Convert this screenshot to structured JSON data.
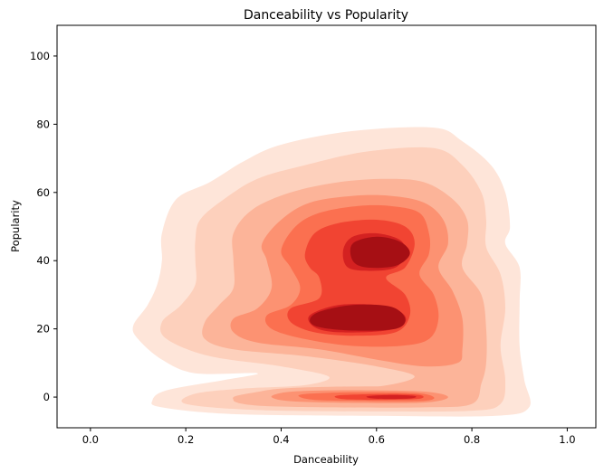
{
  "chart_data": {
    "type": "density_contour",
    "title": "Danceability vs Popularity",
    "xlabel": "Danceability",
    "ylabel": "Popularity",
    "xlim": [
      -0.07,
      1.06
    ],
    "ylim": [
      -9,
      109
    ],
    "xticks": [
      0.0,
      0.2,
      0.4,
      0.6,
      0.8,
      1.0
    ],
    "xtick_labels": [
      "0.0",
      "0.2",
      "0.4",
      "0.6",
      "0.8",
      "1.0"
    ],
    "yticks": [
      0,
      20,
      40,
      60,
      80,
      100
    ],
    "ytick_labels": [
      "0",
      "20",
      "40",
      "60",
      "80",
      "100"
    ],
    "grid": false,
    "colormap": "Reds",
    "level_colors": [
      "#fee5d9",
      "#fdd0bc",
      "#fcb499",
      "#fc9272",
      "#fb7050",
      "#f14432",
      "#d42121",
      "#a60f14"
    ],
    "peaks": [
      {
        "x": 0.61,
        "y": 41
      },
      {
        "x": 0.55,
        "y": 22
      },
      {
        "x": 0.62,
        "y": 0
      }
    ],
    "levels": [
      {
        "points": [
          [
            0.18,
            58
          ],
          [
            0.25,
            63
          ],
          [
            0.32,
            69
          ],
          [
            0.4,
            74
          ],
          [
            0.55,
            78
          ],
          [
            0.72,
            79
          ],
          [
            0.78,
            75
          ],
          [
            0.84,
            68
          ],
          [
            0.87,
            60
          ],
          [
            0.88,
            50
          ],
          [
            0.87,
            45
          ],
          [
            0.9,
            38
          ],
          [
            0.9,
            28
          ],
          [
            0.9,
            15
          ],
          [
            0.91,
            5
          ],
          [
            0.92,
            -3
          ],
          [
            0.85,
            -5.5
          ],
          [
            0.6,
            -5.5
          ],
          [
            0.3,
            -5
          ],
          [
            0.15,
            -3
          ],
          [
            0.13,
            -1
          ],
          [
            0.16,
            2
          ],
          [
            0.28,
            5
          ],
          [
            0.35,
            7
          ],
          [
            0.22,
            7
          ],
          [
            0.15,
            11
          ],
          [
            0.1,
            17
          ],
          [
            0.09,
            21
          ],
          [
            0.12,
            27
          ],
          [
            0.14,
            33
          ],
          [
            0.15,
            40
          ],
          [
            0.15,
            48
          ]
        ]
      },
      {
        "points": [
          [
            0.23,
            52
          ],
          [
            0.28,
            58
          ],
          [
            0.35,
            64
          ],
          [
            0.45,
            68
          ],
          [
            0.58,
            72
          ],
          [
            0.72,
            73
          ],
          [
            0.78,
            68
          ],
          [
            0.82,
            60
          ],
          [
            0.83,
            52
          ],
          [
            0.83,
            44
          ],
          [
            0.86,
            36
          ],
          [
            0.87,
            26
          ],
          [
            0.86,
            15
          ],
          [
            0.87,
            5
          ],
          [
            0.86,
            -2
          ],
          [
            0.8,
            -4
          ],
          [
            0.6,
            -4.2
          ],
          [
            0.35,
            -3.8
          ],
          [
            0.2,
            -2
          ],
          [
            0.22,
            1
          ],
          [
            0.32,
            2.5
          ],
          [
            0.45,
            3.5
          ],
          [
            0.5,
            6
          ],
          [
            0.4,
            9
          ],
          [
            0.25,
            12
          ],
          [
            0.16,
            17
          ],
          [
            0.15,
            22
          ],
          [
            0.19,
            27
          ],
          [
            0.22,
            33
          ],
          [
            0.22,
            40
          ],
          [
            0.22,
            46
          ]
        ]
      },
      {
        "points": [
          [
            0.3,
            48
          ],
          [
            0.34,
            55
          ],
          [
            0.42,
            60
          ],
          [
            0.52,
            63
          ],
          [
            0.62,
            64
          ],
          [
            0.7,
            63
          ],
          [
            0.76,
            58
          ],
          [
            0.79,
            52
          ],
          [
            0.79,
            45
          ],
          [
            0.78,
            38
          ],
          [
            0.82,
            30
          ],
          [
            0.83,
            20
          ],
          [
            0.83,
            10
          ],
          [
            0.82,
            4
          ],
          [
            0.8,
            -2
          ],
          [
            0.7,
            -3
          ],
          [
            0.5,
            -3
          ],
          [
            0.35,
            -2.5
          ],
          [
            0.3,
            -1
          ],
          [
            0.34,
            1
          ],
          [
            0.45,
            2
          ],
          [
            0.6,
            3
          ],
          [
            0.68,
            6
          ],
          [
            0.6,
            9
          ],
          [
            0.45,
            12
          ],
          [
            0.3,
            14
          ],
          [
            0.24,
            17
          ],
          [
            0.24,
            22
          ],
          [
            0.27,
            27
          ],
          [
            0.3,
            32
          ],
          [
            0.3,
            40
          ]
        ]
      },
      {
        "points": [
          [
            0.36,
            45
          ],
          [
            0.4,
            52
          ],
          [
            0.46,
            57
          ],
          [
            0.55,
            59
          ],
          [
            0.63,
            59
          ],
          [
            0.7,
            57
          ],
          [
            0.74,
            52
          ],
          [
            0.75,
            45
          ],
          [
            0.73,
            38
          ],
          [
            0.76,
            31
          ],
          [
            0.78,
            23
          ],
          [
            0.78,
            14
          ],
          [
            0.77,
            10
          ],
          [
            0.7,
            9
          ],
          [
            0.6,
            11
          ],
          [
            0.48,
            14
          ],
          [
            0.35,
            16
          ],
          [
            0.3,
            19
          ],
          [
            0.3,
            23
          ],
          [
            0.35,
            26
          ],
          [
            0.38,
            32
          ],
          [
            0.37,
            40
          ]
        ]
      },
      {
        "points": [
          [
            0.4,
            43
          ],
          [
            0.43,
            50
          ],
          [
            0.48,
            54
          ],
          [
            0.56,
            56
          ],
          [
            0.63,
            56
          ],
          [
            0.69,
            54
          ],
          [
            0.71,
            48
          ],
          [
            0.71,
            42
          ],
          [
            0.69,
            36
          ],
          [
            0.72,
            30
          ],
          [
            0.73,
            23
          ],
          [
            0.71,
            17
          ],
          [
            0.65,
            15
          ],
          [
            0.55,
            15
          ],
          [
            0.45,
            17
          ],
          [
            0.38,
            20
          ],
          [
            0.37,
            24
          ],
          [
            0.42,
            27
          ],
          [
            0.44,
            32
          ],
          [
            0.42,
            38
          ]
        ]
      },
      {
        "points": [
          [
            0.45,
            42
          ],
          [
            0.47,
            48
          ],
          [
            0.52,
            51
          ],
          [
            0.6,
            52
          ],
          [
            0.66,
            50
          ],
          [
            0.68,
            45
          ],
          [
            0.66,
            38
          ],
          [
            0.62,
            35
          ],
          [
            0.66,
            30
          ],
          [
            0.67,
            24
          ],
          [
            0.64,
            19
          ],
          [
            0.55,
            18
          ],
          [
            0.47,
            19
          ],
          [
            0.42,
            22
          ],
          [
            0.42,
            26
          ],
          [
            0.48,
            29
          ],
          [
            0.48,
            35
          ],
          [
            0.46,
            38
          ]
        ]
      },
      {
        "points": [
          [
            0.53,
            43
          ],
          [
            0.55,
            47
          ],
          [
            0.6,
            48
          ],
          [
            0.65,
            46
          ],
          [
            0.66,
            42
          ],
          [
            0.64,
            38
          ],
          [
            0.59,
            37
          ],
          [
            0.54,
            38
          ]
        ]
      },
      {
        "points": [
          [
            0.46,
            24
          ],
          [
            0.52,
            27
          ],
          [
            0.6,
            27
          ],
          [
            0.65,
            25
          ],
          [
            0.66,
            22
          ],
          [
            0.62,
            19.5
          ],
          [
            0.52,
            19
          ],
          [
            0.47,
            20.5
          ]
        ]
      },
      {
        "points": [
          [
            0.55,
            45
          ],
          [
            0.6,
            47
          ],
          [
            0.65,
            45.5
          ],
          [
            0.67,
            42
          ],
          [
            0.64,
            38.5
          ],
          [
            0.58,
            38
          ],
          [
            0.55,
            40
          ]
        ]
      },
      {
        "points": [
          [
            0.48,
            25
          ],
          [
            0.55,
            27
          ],
          [
            0.63,
            26.5
          ],
          [
            0.66,
            23
          ],
          [
            0.64,
            20
          ],
          [
            0.55,
            19.5
          ],
          [
            0.48,
            20.5
          ],
          [
            0.46,
            22.5
          ]
        ]
      },
      {
        "points": [
          [
            0.35,
            1.5
          ],
          [
            0.3,
            0
          ],
          [
            0.33,
            -1.5
          ],
          [
            0.5,
            -2.3
          ],
          [
            0.7,
            -2.3
          ],
          [
            0.78,
            -1.5
          ],
          [
            0.78,
            1.5
          ],
          [
            0.65,
            3
          ],
          [
            0.5,
            3
          ],
          [
            0.4,
            2.5
          ]
        ]
      },
      {
        "points": [
          [
            0.4,
            1.2
          ],
          [
            0.38,
            0
          ],
          [
            0.42,
            -1.2
          ],
          [
            0.55,
            -1.7
          ],
          [
            0.7,
            -1.6
          ],
          [
            0.75,
            0
          ],
          [
            0.7,
            1.6
          ],
          [
            0.55,
            2
          ],
          [
            0.45,
            1.8
          ]
        ]
      },
      {
        "points": [
          [
            0.45,
            0.9
          ],
          [
            0.44,
            0
          ],
          [
            0.48,
            -0.9
          ],
          [
            0.6,
            -1.2
          ],
          [
            0.7,
            -1.1
          ],
          [
            0.72,
            0
          ],
          [
            0.68,
            1.2
          ],
          [
            0.55,
            1.4
          ]
        ]
      },
      {
        "points": [
          [
            0.52,
            0.5
          ],
          [
            0.53,
            -0.6
          ],
          [
            0.62,
            -0.8
          ],
          [
            0.69,
            -0.5
          ],
          [
            0.69,
            0.6
          ],
          [
            0.62,
            0.9
          ]
        ]
      },
      {
        "points": [
          [
            0.58,
            0.2
          ],
          [
            0.6,
            -0.5
          ],
          [
            0.67,
            -0.4
          ],
          [
            0.68,
            0.3
          ],
          [
            0.63,
            0.6
          ]
        ]
      }
    ],
    "level_color_index": [
      0,
      1,
      2,
      3,
      4,
      5,
      6,
      6,
      7,
      7,
      2,
      3,
      4,
      5,
      6
    ]
  }
}
